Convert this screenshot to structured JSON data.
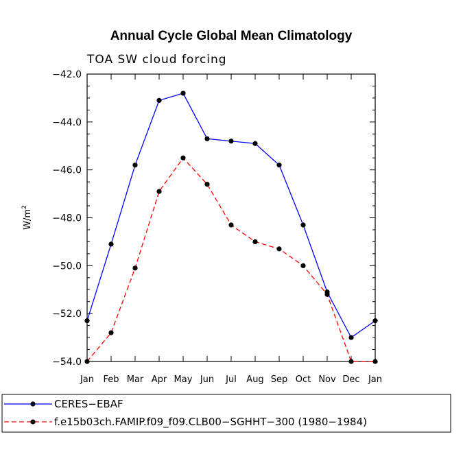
{
  "chart_data": {
    "type": "line",
    "title": "Annual Cycle Global Mean Climatology",
    "subtitle": "TOA SW cloud forcing",
    "ylabel": "W/m",
    "ylabel_sup": "2",
    "xlabel": "",
    "ylim": [
      -54.0,
      -42.0
    ],
    "yticks": [
      -42.0,
      -44.0,
      -46.0,
      -48.0,
      -50.0,
      -52.0,
      -54.0
    ],
    "ytick_labels": [
      "−42.0",
      "−44.0",
      "−46.0",
      "−48.0",
      "−50.0",
      "−52.0",
      "−54.0"
    ],
    "categories": [
      "Jan",
      "Feb",
      "Mar",
      "Apr",
      "May",
      "Jun",
      "Jul",
      "Aug",
      "Sep",
      "Oct",
      "Nov",
      "Dec",
      "Jan"
    ],
    "series": [
      {
        "name": "CERES−EBAF",
        "color": "#0000ff",
        "dash": "solid",
        "values": [
          -52.3,
          -49.1,
          -45.8,
          -43.1,
          -42.8,
          -44.7,
          -44.8,
          -44.9,
          -45.8,
          -48.3,
          -51.1,
          -53.0,
          -52.3
        ]
      },
      {
        "name": "f.e15b03ch.FAMIP.f09_f09.CLB00−SGHHT−300 (1980−1984)",
        "color": "#ff0000",
        "dash": "dashed",
        "values": [
          -54.0,
          -52.8,
          -50.1,
          -46.9,
          -45.5,
          -46.6,
          -48.3,
          -49.0,
          -49.3,
          -50.0,
          -51.2,
          -54.0,
          -54.0
        ]
      }
    ],
    "legend_position": "bottom"
  }
}
